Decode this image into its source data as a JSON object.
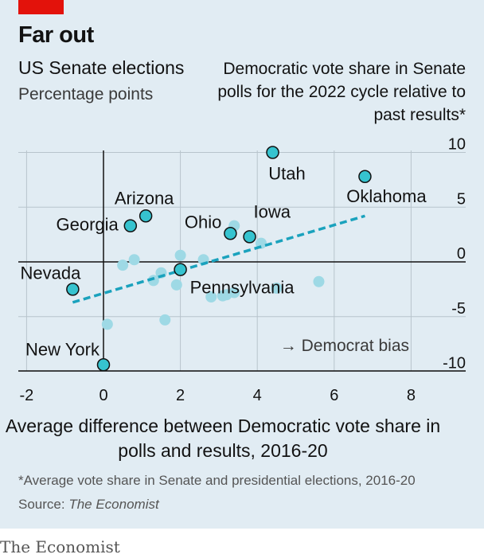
{
  "header": {
    "title": "Far out",
    "subtitle": "US Senate elections",
    "unit": "Percentage points"
  },
  "footer": {
    "footnote": "*Average vote share in Senate and presidential elections, 2016-20",
    "source_label": "Source: ",
    "source_name": "The Economist",
    "logo": "The Economist"
  },
  "colors": {
    "highlight": "#36c3cf",
    "background_points": "#9ed9e5",
    "trend_line": "#1aa2bd",
    "accent_tag": "#e3120b"
  },
  "chart_data": {
    "type": "scatter",
    "title": "Far out",
    "ylabel": "Democratic vote share in Senate polls for the 2022 cycle relative to past results*",
    "xlabel": "Average difference between Democratic vote share in polls and results, 2016-20",
    "xlim": [
      -2,
      9
    ],
    "ylim": [
      -10,
      11
    ],
    "xticks": [
      "-2",
      "0",
      "2",
      "4",
      "6",
      "8"
    ],
    "xtick_values": [
      -2,
      0,
      2,
      4,
      6,
      8
    ],
    "yticks": [
      "10",
      "5",
      "0",
      "-5",
      "-10"
    ],
    "ytick_values": [
      10,
      5,
      0,
      -5,
      -10
    ],
    "grid": true,
    "annotation": "→ Democrat bias",
    "labelled_points": [
      {
        "label": "Utah",
        "x": 4.4,
        "y": 10.0
      },
      {
        "label": "Oklahoma",
        "x": 6.8,
        "y": 7.8
      },
      {
        "label": "Arizona",
        "x": 1.1,
        "y": 4.2
      },
      {
        "label": "Georgia",
        "x": 0.7,
        "y": 3.3
      },
      {
        "label": "Ohio",
        "x": 3.3,
        "y": 2.6
      },
      {
        "label": "Iowa",
        "x": 3.8,
        "y": 2.3
      },
      {
        "label": "Pennsylvania",
        "x": 2.0,
        "y": -0.7
      },
      {
        "label": "Nevada",
        "x": -0.8,
        "y": -2.5
      },
      {
        "label": "New York",
        "x": 0.0,
        "y": -9.4
      }
    ],
    "other_points": [
      {
        "x": 3.4,
        "y": 3.3
      },
      {
        "x": 4.1,
        "y": 1.7
      },
      {
        "x": 0.8,
        "y": 0.2
      },
      {
        "x": 0.5,
        "y": -0.3
      },
      {
        "x": 2.0,
        "y": 0.6
      },
      {
        "x": 2.6,
        "y": 0.2
      },
      {
        "x": 1.5,
        "y": -1.0
      },
      {
        "x": 1.3,
        "y": -1.7
      },
      {
        "x": 1.9,
        "y": -2.1
      },
      {
        "x": 2.8,
        "y": -3.2
      },
      {
        "x": 3.1,
        "y": -3.1
      },
      {
        "x": 3.2,
        "y": -3.0
      },
      {
        "x": 3.4,
        "y": -2.8
      },
      {
        "x": 4.5,
        "y": -2.4
      },
      {
        "x": 5.6,
        "y": -1.8
      },
      {
        "x": 1.6,
        "y": -5.3
      },
      {
        "x": 0.1,
        "y": -5.7
      }
    ],
    "trend_line": {
      "x1": -0.8,
      "y1": -3.7,
      "x2": 6.8,
      "y2": 4.2
    }
  }
}
